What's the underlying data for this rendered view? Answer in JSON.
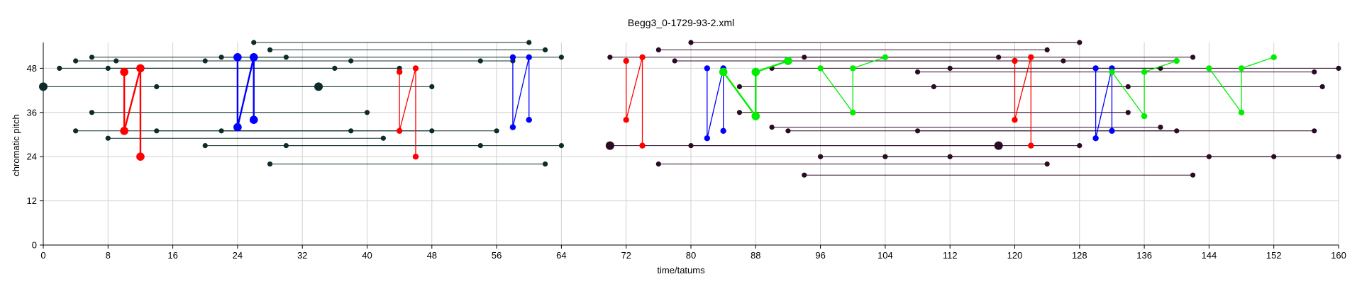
{
  "chart_data": {
    "type": "scatter",
    "title": "Begg3_0-1729-93-2.xml",
    "xlabel": "time/tatums",
    "ylabel": "chromatic pitch",
    "xlim": [
      0,
      160
    ],
    "ylim": [
      0,
      55
    ],
    "x_ticks": [
      0,
      8,
      16,
      24,
      32,
      40,
      48,
      56,
      64,
      72,
      80,
      88,
      96,
      104,
      112,
      120,
      128,
      136,
      144,
      152,
      160
    ],
    "y_ticks": [
      0,
      12,
      24,
      36,
      48
    ],
    "grid": true,
    "colors": {
      "left_note": "#0d2b2b",
      "right_note": "#2a0a24",
      "red": "#ff0000",
      "blue": "#0000ff",
      "green": "#00ee00",
      "grid": "#d0d0d0"
    },
    "notes": [
      {
        "group": "left",
        "start": 26,
        "end": 60,
        "pitch": 55
      },
      {
        "group": "left",
        "start": 28,
        "end": 62,
        "pitch": 53
      },
      {
        "group": "left",
        "start": 4,
        "end": 58,
        "pitch": 50
      },
      {
        "group": "left",
        "start": 6,
        "end": 64,
        "pitch": 51
      },
      {
        "group": "left",
        "start": 9,
        "end": 20,
        "pitch": 50
      },
      {
        "group": "left",
        "start": 22,
        "end": 30,
        "pitch": 51
      },
      {
        "group": "left",
        "start": 38,
        "end": 54,
        "pitch": 50
      },
      {
        "group": "left",
        "start": 2,
        "end": 36,
        "pitch": 48
      },
      {
        "group": "left",
        "start": 8,
        "end": 44,
        "pitch": 48
      },
      {
        "group": "left",
        "start": 0,
        "end": 34,
        "pitch": 43,
        "major": true
      },
      {
        "group": "left",
        "start": 14,
        "end": 48,
        "pitch": 43
      },
      {
        "group": "left",
        "start": 6,
        "end": 40,
        "pitch": 36
      },
      {
        "group": "left",
        "start": 4,
        "end": 38,
        "pitch": 31
      },
      {
        "group": "left",
        "start": 14,
        "end": 48,
        "pitch": 31
      },
      {
        "group": "left",
        "start": 22,
        "end": 56,
        "pitch": 31
      },
      {
        "group": "left",
        "start": 8,
        "end": 42,
        "pitch": 29
      },
      {
        "group": "left",
        "start": 20,
        "end": 54,
        "pitch": 27
      },
      {
        "group": "left",
        "start": 30,
        "end": 64,
        "pitch": 27
      },
      {
        "group": "left",
        "start": 28,
        "end": 62,
        "pitch": 22
      },
      {
        "group": "right",
        "start": 80,
        "end": 128,
        "pitch": 55
      },
      {
        "group": "right",
        "start": 76,
        "end": 124,
        "pitch": 53
      },
      {
        "group": "right",
        "start": 70,
        "end": 118,
        "pitch": 51
      },
      {
        "group": "right",
        "start": 94,
        "end": 142,
        "pitch": 51
      },
      {
        "group": "right",
        "start": 78,
        "end": 126,
        "pitch": 50
      },
      {
        "group": "right",
        "start": 92,
        "end": 140,
        "pitch": 50
      },
      {
        "group": "right",
        "start": 112,
        "end": 160,
        "pitch": 48
      },
      {
        "group": "right",
        "start": 108,
        "end": 157,
        "pitch": 47
      },
      {
        "group": "right",
        "start": 90,
        "end": 138,
        "pitch": 48
      },
      {
        "group": "right",
        "start": 86,
        "end": 134,
        "pitch": 43
      },
      {
        "group": "right",
        "start": 110,
        "end": 158,
        "pitch": 43
      },
      {
        "group": "right",
        "start": 86,
        "end": 134,
        "pitch": 36
      },
      {
        "group": "right",
        "start": 90,
        "end": 138,
        "pitch": 32
      },
      {
        "group": "right",
        "start": 92,
        "end": 140,
        "pitch": 31
      },
      {
        "group": "right",
        "start": 108,
        "end": 157,
        "pitch": 31
      },
      {
        "group": "right",
        "start": 70,
        "end": 118,
        "pitch": 27,
        "major": true
      },
      {
        "group": "right",
        "start": 80,
        "end": 128,
        "pitch": 27
      },
      {
        "group": "right",
        "start": 96,
        "end": 144,
        "pitch": 24
      },
      {
        "group": "right",
        "start": 104,
        "end": 152,
        "pitch": 24
      },
      {
        "group": "right",
        "start": 112,
        "end": 160,
        "pitch": 24
      },
      {
        "group": "right",
        "start": 76,
        "end": 124,
        "pitch": 22
      },
      {
        "group": "right",
        "start": 94,
        "end": 142,
        "pitch": 19
      }
    ],
    "chains": [
      {
        "color": "red",
        "bold": true,
        "points": [
          [
            10,
            47
          ],
          [
            10,
            31
          ],
          [
            12,
            48
          ],
          [
            12,
            24
          ]
        ]
      },
      {
        "color": "blue",
        "bold": true,
        "points": [
          [
            24,
            51
          ],
          [
            24,
            32
          ],
          [
            26,
            51
          ],
          [
            26,
            34
          ]
        ]
      },
      {
        "color": "red",
        "bold": false,
        "points": [
          [
            44,
            47
          ],
          [
            44,
            31
          ],
          [
            46,
            48
          ],
          [
            46,
            24
          ]
        ]
      },
      {
        "color": "blue",
        "bold": false,
        "points": [
          [
            58,
            51
          ],
          [
            58,
            32
          ],
          [
            60,
            51
          ],
          [
            60,
            34
          ]
        ]
      },
      {
        "color": "red",
        "bold": false,
        "points": [
          [
            72,
            50
          ],
          [
            72,
            34
          ],
          [
            74,
            51
          ],
          [
            74,
            27
          ]
        ]
      },
      {
        "color": "blue",
        "bold": false,
        "points": [
          [
            82,
            48
          ],
          [
            82,
            29
          ],
          [
            84,
            48
          ],
          [
            84,
            31
          ]
        ]
      },
      {
        "color": "green",
        "bold": true,
        "points": [
          [
            84,
            47
          ],
          [
            88,
            35
          ],
          [
            88,
            47
          ],
          [
            92,
            50
          ]
        ]
      },
      {
        "color": "green",
        "bold": false,
        "points": [
          [
            96,
            48
          ],
          [
            100,
            36
          ],
          [
            100,
            48
          ],
          [
            104,
            51
          ]
        ]
      },
      {
        "color": "red",
        "bold": false,
        "points": [
          [
            120,
            50
          ],
          [
            120,
            34
          ],
          [
            122,
            51
          ],
          [
            122,
            27
          ]
        ]
      },
      {
        "color": "blue",
        "bold": false,
        "points": [
          [
            130,
            48
          ],
          [
            130,
            29
          ],
          [
            132,
            48
          ],
          [
            132,
            31
          ]
        ]
      },
      {
        "color": "green",
        "bold": false,
        "points": [
          [
            132,
            47
          ],
          [
            136,
            35
          ],
          [
            136,
            47
          ],
          [
            140,
            50
          ]
        ]
      },
      {
        "color": "green",
        "bold": false,
        "points": [
          [
            144,
            48
          ],
          [
            148,
            36
          ],
          [
            148,
            48
          ],
          [
            152,
            51
          ]
        ]
      }
    ]
  }
}
